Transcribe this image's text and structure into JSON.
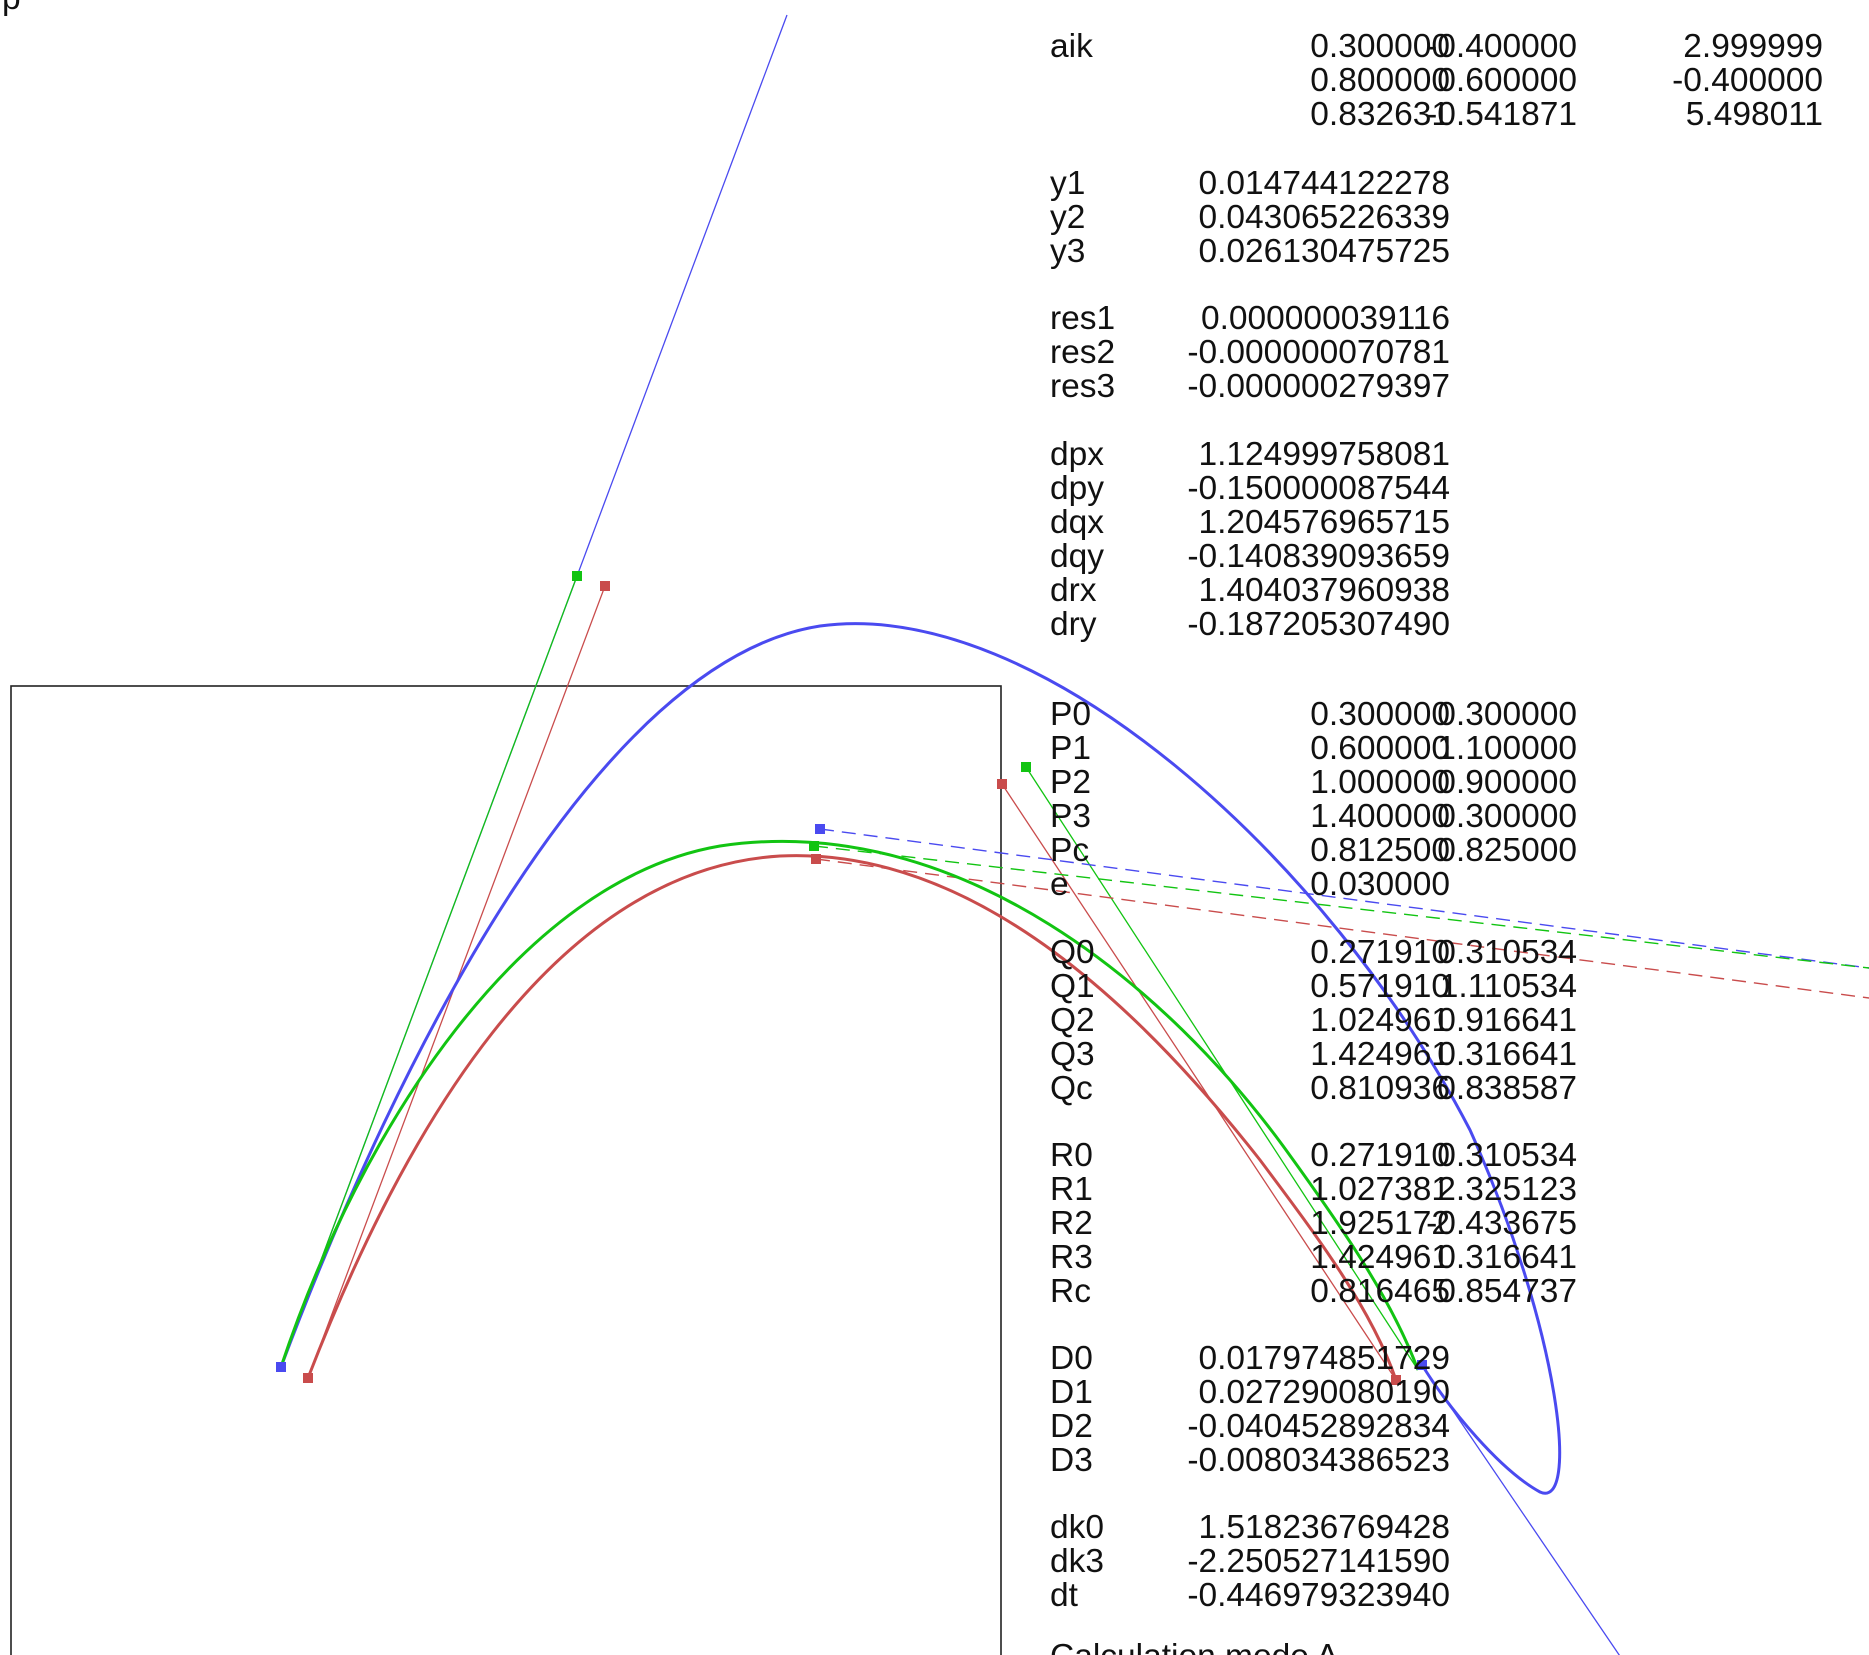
{
  "corner_glyph": "p",
  "rows": [
    {
      "label": "aik",
      "values": [
        "0.300000",
        "-0.400000",
        "2.999999"
      ]
    },
    {
      "label": "",
      "values": [
        "0.800000",
        "0.600000",
        "-0.400000"
      ]
    },
    {
      "label": "",
      "values": [
        "0.832631",
        "-0.541871",
        "5.498011"
      ]
    },
    {
      "label": "y1",
      "values": [
        "0.014744122278"
      ]
    },
    {
      "label": "y2",
      "values": [
        "0.043065226339"
      ]
    },
    {
      "label": "y3",
      "values": [
        "0.026130475725"
      ]
    },
    {
      "label": "res1",
      "values": [
        "0.000000039116"
      ]
    },
    {
      "label": "res2",
      "values": [
        "-0.000000070781"
      ]
    },
    {
      "label": "res3",
      "values": [
        "-0.000000279397"
      ]
    },
    {
      "label": "dpx",
      "values": [
        "1.124999758081"
      ]
    },
    {
      "label": "dpy",
      "values": [
        "-0.150000087544"
      ]
    },
    {
      "label": "dqx",
      "values": [
        "1.204576965715"
      ]
    },
    {
      "label": "dqy",
      "values": [
        "-0.140839093659"
      ]
    },
    {
      "label": "drx",
      "values": [
        "1.404037960938"
      ]
    },
    {
      "label": "dry",
      "values": [
        "-0.187205307490"
      ]
    },
    {
      "label": "P0",
      "values": [
        "0.300000",
        "0.300000"
      ]
    },
    {
      "label": "P1",
      "values": [
        "0.600000",
        "1.100000"
      ]
    },
    {
      "label": "P2",
      "values": [
        "1.000000",
        "0.900000"
      ]
    },
    {
      "label": "P3",
      "values": [
        "1.400000",
        "0.300000"
      ]
    },
    {
      "label": "Pc",
      "values": [
        "0.812500",
        "0.825000"
      ]
    },
    {
      "label": "e",
      "values": [
        "0.030000"
      ]
    },
    {
      "label": "Q0",
      "values": [
        "0.271910",
        "0.310534"
      ]
    },
    {
      "label": "Q1",
      "values": [
        "0.571910",
        "1.110534"
      ]
    },
    {
      "label": "Q2",
      "values": [
        "1.024961",
        "0.916641"
      ]
    },
    {
      "label": "Q3",
      "values": [
        "1.424961",
        "0.316641"
      ]
    },
    {
      "label": "Qc",
      "values": [
        "0.810936",
        "0.838587"
      ]
    },
    {
      "label": "R0",
      "values": [
        "0.271910",
        "0.310534"
      ]
    },
    {
      "label": "R1",
      "values": [
        "1.027381",
        "2.325123"
      ]
    },
    {
      "label": "R2",
      "values": [
        "1.925172",
        "-0.433675"
      ]
    },
    {
      "label": "R3",
      "values": [
        "1.424961",
        "0.316641"
      ]
    },
    {
      "label": "Rc",
      "values": [
        "0.816465",
        "0.854737"
      ]
    },
    {
      "label": "D0",
      "values": [
        "0.017974851729"
      ]
    },
    {
      "label": "D1",
      "values": [
        "0.027290080190"
      ]
    },
    {
      "label": "D2",
      "values": [
        "-0.040452892834"
      ]
    },
    {
      "label": "D3",
      "values": [
        "-0.008034386523"
      ]
    },
    {
      "label": "dk0",
      "values": [
        "1.518236769428"
      ]
    },
    {
      "label": "dk3",
      "values": [
        "-2.250527141590"
      ]
    },
    {
      "label": "dt",
      "values": [
        "-0.446979323940"
      ]
    }
  ],
  "footer": "Calculation mode A",
  "colors": {
    "blue": "#4a4af0",
    "green": "#12c412",
    "red": "#c94c4c",
    "frame": "#222222",
    "text": "#111111"
  }
}
